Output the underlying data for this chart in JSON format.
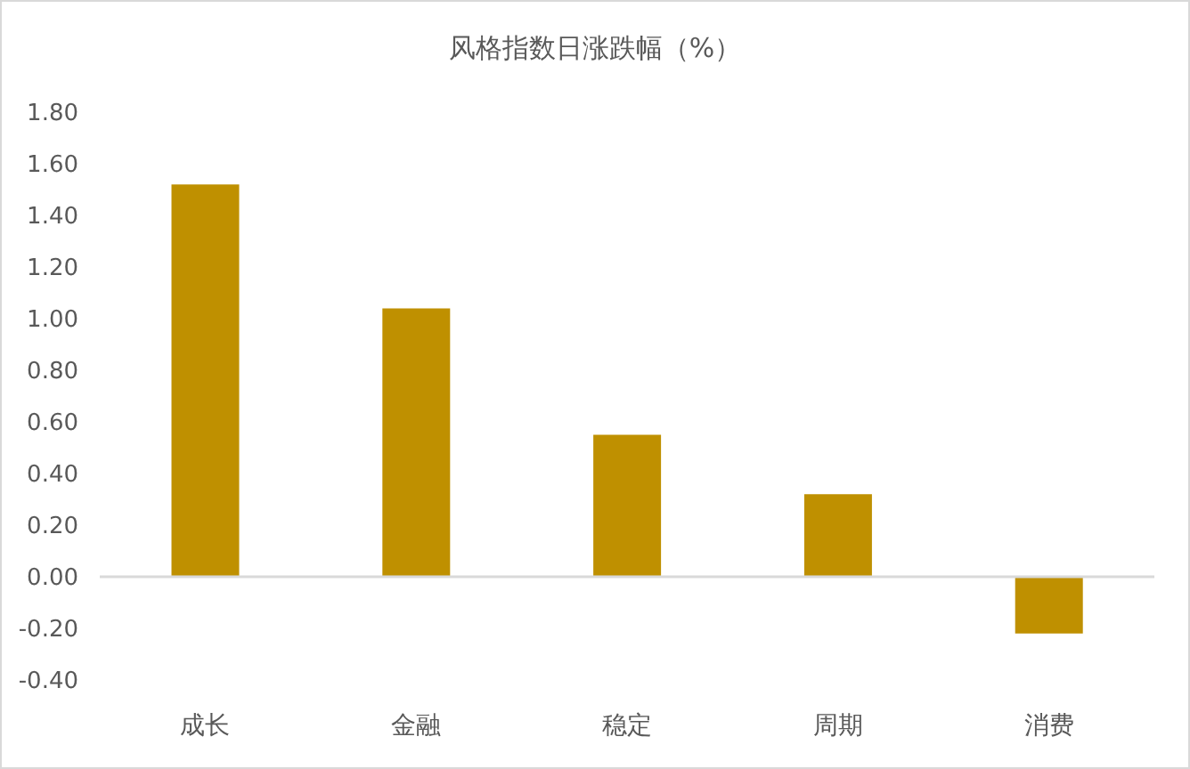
{
  "chart_data": {
    "type": "bar",
    "title": "风格指数日涨跌幅（%）",
    "categories": [
      "成长",
      "金融",
      "稳定",
      "周期",
      "消费"
    ],
    "values": [
      1.52,
      1.04,
      0.55,
      0.32,
      -0.22
    ],
    "color": "#bf9000",
    "ylim": [
      -0.4,
      1.8
    ],
    "yticks": [
      {
        "value": -0.4,
        "label": "-0.40"
      },
      {
        "value": -0.2,
        "label": "-0.20"
      },
      {
        "value": 0,
        "label": "0.00"
      },
      {
        "value": 0.2,
        "label": "0.20"
      },
      {
        "value": 0.4,
        "label": "0.40"
      },
      {
        "value": 0.6,
        "label": "0.60"
      },
      {
        "value": 0.8,
        "label": "0.80"
      },
      {
        "value": 1,
        "label": "1.00"
      },
      {
        "value": 1.2,
        "label": "1.20"
      },
      {
        "value": 1.4,
        "label": "1.40"
      },
      {
        "value": 1.6,
        "label": "1.60"
      },
      {
        "value": 1.8,
        "label": "1.80"
      }
    ]
  }
}
